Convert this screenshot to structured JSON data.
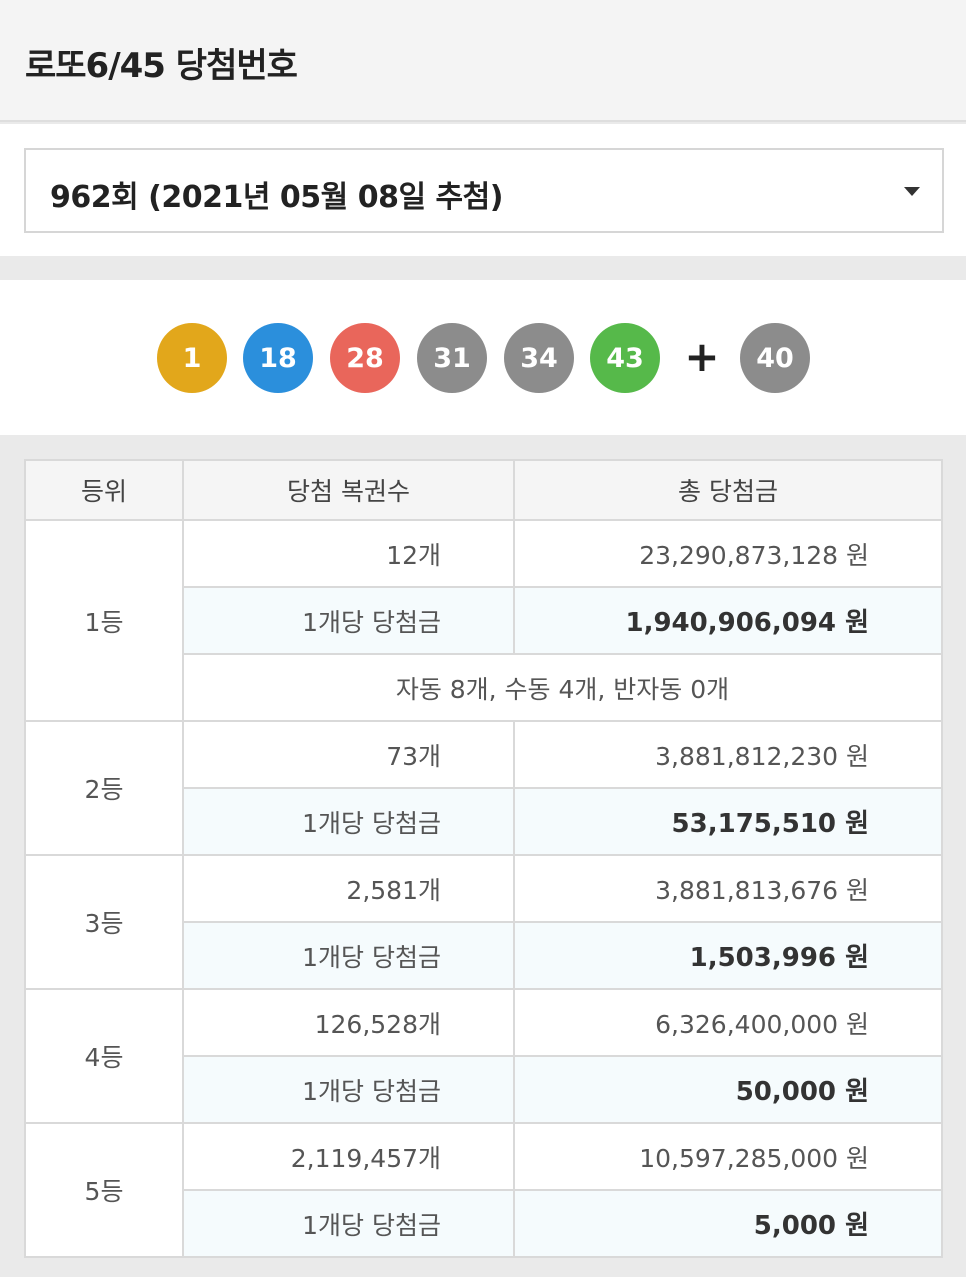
{
  "header": {
    "title": "로또6/45 당첨번호"
  },
  "draw_select": {
    "selected": "962회 (2021년 05월 08일 추첨)"
  },
  "balls": [
    {
      "number": "1",
      "color": "#e2a71b"
    },
    {
      "number": "18",
      "color": "#2b8fdc"
    },
    {
      "number": "28",
      "color": "#e9665b"
    },
    {
      "number": "31",
      "color": "#8c8c8c"
    },
    {
      "number": "34",
      "color": "#8c8c8c"
    },
    {
      "number": "43",
      "color": "#56b94a"
    }
  ],
  "plus": "+",
  "bonus": {
    "number": "40",
    "color": "#8c8c8c"
  },
  "table": {
    "headers": [
      "등위",
      "당첨 복권수",
      "총 당첨금"
    ],
    "rows": [
      {
        "rank": "1등",
        "count": "12개",
        "total": "23,290,873,128 원",
        "per_label": "1개당 당첨금",
        "per_amount": "1,940,906,094 원",
        "note": "자동 8개, 수동 4개, 반자동 0개"
      },
      {
        "rank": "2등",
        "count": "73개",
        "total": "3,881,812,230 원",
        "per_label": "1개당 당첨금",
        "per_amount": "53,175,510 원"
      },
      {
        "rank": "3등",
        "count": "2,581개",
        "total": "3,881,813,676 원",
        "per_label": "1개당 당첨금",
        "per_amount": "1,503,996 원"
      },
      {
        "rank": "4등",
        "count": "126,528개",
        "total": "6,326,400,000 원",
        "per_label": "1개당 당첨금",
        "per_amount": "50,000 원"
      },
      {
        "rank": "5등",
        "count": "2,119,457개",
        "total": "10,597,285,000 원",
        "per_label": "1개당 당첨금",
        "per_amount": "5,000 원"
      }
    ]
  }
}
